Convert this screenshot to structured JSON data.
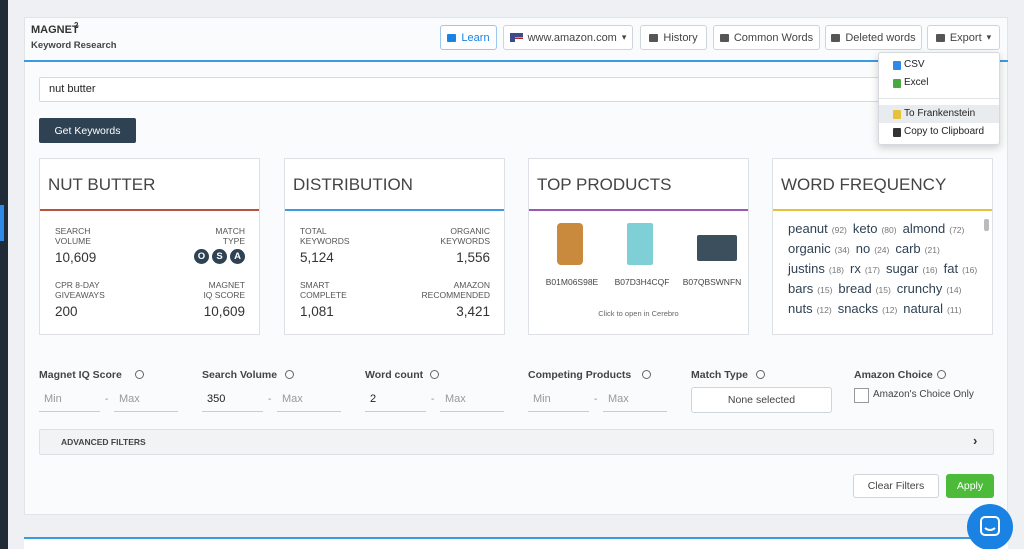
{
  "header": {
    "title": "MAGNET",
    "title_sup": "2",
    "subtitle": "Keyword Research",
    "buttons": [
      "Learn",
      "www.amazon.com",
      "History",
      "Common Words",
      "Deleted words",
      "Export"
    ]
  },
  "export_menu": [
    "CSV",
    "Excel",
    "To Frankenstein",
    "Copy to Clipboard"
  ],
  "search": {
    "query": "nut butter",
    "button": "Get Keywords"
  },
  "stat_cards": [
    {
      "title": "NUT BUTTER",
      "stats": [
        {
          "label": [
            "SEARCH",
            "VOLUME"
          ],
          "value": "10,609"
        },
        {
          "label": [
            "MATCH",
            "TYPE"
          ],
          "badges": [
            "O",
            "S",
            "A"
          ]
        },
        {
          "label": [
            "CPR 8-DAY",
            "GIVEAWAYS"
          ],
          "value": "200"
        },
        {
          "label": [
            "MAGNET",
            "IQ SCORE"
          ],
          "value": "10,609"
        }
      ]
    },
    {
      "title": "DISTRIBUTION",
      "stats": [
        {
          "label": [
            "TOTAL",
            "KEYWORDS"
          ],
          "value": "5,124"
        },
        {
          "label": [
            "ORGANIC",
            "KEYWORDS"
          ],
          "value": "1,556"
        },
        {
          "label": [
            "SMART",
            "COMPLETE"
          ],
          "value": "1,081"
        },
        {
          "label": [
            "AMAZON",
            "RECOMMENDED"
          ],
          "value": "3,421"
        }
      ]
    }
  ],
  "top_products": {
    "title": "TOP PRODUCTS",
    "products": [
      "B01M06S98E",
      "B07D3H4CQF",
      "B07QBSWNFN"
    ],
    "note": "Click to open in Cerebro"
  },
  "word_frequency": {
    "title": "WORD FREQUENCY",
    "rows": [
      [
        {
          "word": "peanut",
          "count": "(92)"
        },
        {
          "word": "keto",
          "count": "(80)"
        },
        {
          "word": "almond",
          "count": "(72)"
        }
      ],
      [
        {
          "word": "organic",
          "count": "(34)"
        },
        {
          "word": "no",
          "count": "(24)"
        },
        {
          "word": "carb",
          "count": "(21)"
        }
      ],
      [
        {
          "word": "justins",
          "count": "(18)"
        },
        {
          "word": "rx",
          "count": "(17)"
        },
        {
          "word": "sugar",
          "count": "(16)"
        },
        {
          "word": "fat",
          "count": "(16)"
        }
      ],
      [
        {
          "word": "bars",
          "count": "(15)"
        },
        {
          "word": "bread",
          "count": "(15)"
        },
        {
          "word": "crunchy",
          "count": "(14)"
        }
      ],
      [
        {
          "word": "nuts",
          "count": "(12)"
        },
        {
          "word": "snacks",
          "count": "(12)"
        },
        {
          "word": "natural",
          "count": "(11)"
        }
      ]
    ]
  },
  "filters": [
    {
      "label": "Magnet IQ Score",
      "min": "Min",
      "sep": "-",
      "max": "Max"
    },
    {
      "label": "Search Volume",
      "min": "350",
      "sep": "-",
      "max": "Max"
    },
    {
      "label": "Word count",
      "min": "2",
      "sep": "-",
      "max": "Max"
    },
    {
      "label": "Competing Products",
      "min": "Min",
      "sep": "-",
      "max": "Max"
    },
    {
      "label": "Match Type",
      "select": "None selected"
    },
    {
      "label": "Amazon Choice",
      "checkbox": "Amazon's Choice Only"
    }
  ],
  "advanced_filters": "ADVANCED FILTERS",
  "actions": [
    "Clear Filters",
    "Apply"
  ]
}
